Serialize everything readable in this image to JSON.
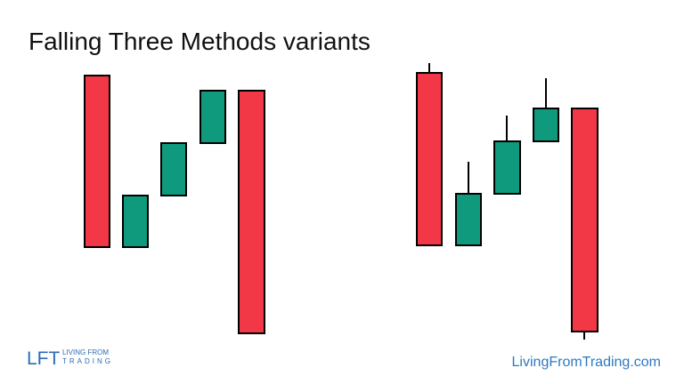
{
  "header": {
    "title": "Falling Three Methods variants"
  },
  "footer": {
    "logo": {
      "mark": "LFT",
      "line1": "LIVING FROM",
      "line2": "TRADING"
    },
    "website": "LivingFromTrading.com"
  }
}
